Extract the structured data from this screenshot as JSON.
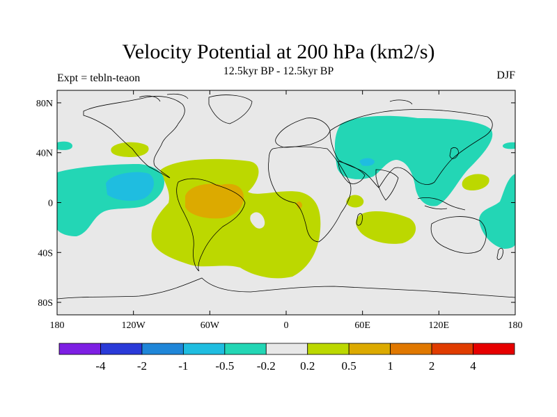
{
  "title": "Velocity Potential at 200 hPa (km2/s)",
  "subtitle": "12.5kyr BP - 12.5kyr BP",
  "left_label": "Expt = tebln-teaon",
  "right_label": "DJF",
  "map": {
    "projection": "cylindrical-equidistant",
    "lon_range": [
      -180,
      180
    ],
    "lat_range": [
      -90,
      90
    ],
    "background_color": "#e8e8e8",
    "coastline_color": "#000000",
    "x_ticks": [
      {
        "lon": -180,
        "label": "180"
      },
      {
        "lon": -120,
        "label": "120W"
      },
      {
        "lon": -60,
        "label": "60W"
      },
      {
        "lon": 0,
        "label": "0"
      },
      {
        "lon": 60,
        "label": "60E"
      },
      {
        "lon": 120,
        "label": "120E"
      },
      {
        "lon": 180,
        "label": "180"
      }
    ],
    "y_ticks": [
      {
        "lat": 80,
        "label": "80N"
      },
      {
        "lat": 40,
        "label": "40N"
      },
      {
        "lat": 0,
        "label": "0"
      },
      {
        "lat": -40,
        "label": "40S"
      },
      {
        "lat": -80,
        "label": "80S"
      }
    ]
  },
  "colorbar": {
    "colors": [
      "#7d1fe3",
      "#2a3ad8",
      "#1f86d8",
      "#1fbde0",
      "#23d6b5",
      "#e8e8e8",
      "#bcd800",
      "#dcaa00",
      "#e07800",
      "#e03c00",
      "#e60000"
    ],
    "labels": [
      "-4",
      "-2",
      "-1",
      "-0.5",
      "-0.2",
      "0.2",
      "0.5",
      "1",
      "2",
      "4"
    ]
  }
}
